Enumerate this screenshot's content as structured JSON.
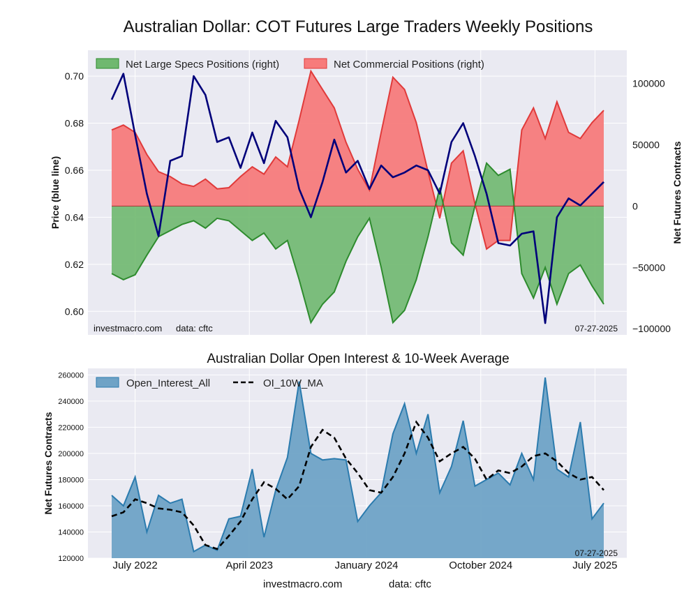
{
  "title": "Australian Dollar: COT Futures Large Traders Weekly Positions",
  "colors": {
    "plot_bg": "#eaeaf2",
    "grid": "#ffffff",
    "specs_fill": "#6fb86f",
    "specs_line": "#2e8b2e",
    "comm_fill": "#f77b7b",
    "comm_line": "#e03a3a",
    "price_line": "#00007a",
    "oi_fill": "#6fa3c6",
    "oi_line": "#2b7bae",
    "ma_line": "#000000"
  },
  "chart_data": [
    {
      "type": "area",
      "title": "",
      "ylabel": "Price (blue line)",
      "y2label": "Net Futures Contracts",
      "ylim": [
        0.59,
        0.711
      ],
      "y2lim": [
        -105000,
        127000
      ],
      "yticks": [
        "0.60",
        "0.62",
        "0.64",
        "0.66",
        "0.68",
        "0.70"
      ],
      "y2ticks": [
        "−100000",
        "−50000",
        "0",
        "50000",
        "100000"
      ],
      "legend_position": "top-left",
      "legend": [
        "Net Large Specs Positions (right)",
        "Net Commercial Positions (right)"
      ],
      "source_left": "investmacro.com",
      "source_right": "data: cftc",
      "date_label": "07-27-2025",
      "x_range": [
        "2022-05-08",
        "2025-07-27"
      ],
      "x": [
        "2022-05-08",
        "2022-06-05",
        "2022-07-03",
        "2022-07-31",
        "2022-08-28",
        "2022-09-25",
        "2022-10-23",
        "2022-11-20",
        "2022-12-18",
        "2023-01-15",
        "2023-02-12",
        "2023-03-12",
        "2023-04-09",
        "2023-05-07",
        "2023-06-04",
        "2023-07-02",
        "2023-07-30",
        "2023-08-27",
        "2023-09-24",
        "2023-10-22",
        "2023-11-19",
        "2023-12-17",
        "2024-01-14",
        "2024-02-11",
        "2024-03-10",
        "2024-04-07",
        "2024-05-05",
        "2024-06-02",
        "2024-06-30",
        "2024-07-28",
        "2024-08-25",
        "2024-09-22",
        "2024-10-20",
        "2024-11-17",
        "2024-12-15",
        "2025-01-12",
        "2025-02-09",
        "2025-03-09",
        "2025-04-06",
        "2025-05-04",
        "2025-06-01",
        "2025-06-29",
        "2025-07-27"
      ],
      "series": [
        {
          "name": "Net Large Specs Positions (right)",
          "values": [
            -55000,
            -60000,
            -56000,
            -40000,
            -25000,
            -20000,
            -15000,
            -12000,
            -18000,
            -10000,
            -12000,
            -20000,
            -28000,
            -22000,
            -35000,
            -28000,
            -60000,
            -95000,
            -80000,
            -70000,
            -45000,
            -25000,
            -10000,
            -50000,
            -95000,
            -85000,
            -60000,
            -25000,
            15000,
            -30000,
            -40000,
            0,
            35000,
            25000,
            30000,
            -55000,
            -75000,
            -50000,
            -80000,
            -55000,
            -48000,
            -65000,
            -80000
          ]
        },
        {
          "name": "Net Commercial Positions (right)",
          "values": [
            62000,
            66000,
            60000,
            42000,
            28000,
            24000,
            18000,
            16000,
            22000,
            14000,
            15000,
            24000,
            32000,
            26000,
            40000,
            32000,
            70000,
            110000,
            95000,
            80000,
            52000,
            30000,
            13000,
            60000,
            105000,
            95000,
            68000,
            28000,
            -10000,
            35000,
            45000,
            2000,
            -35000,
            -28000,
            -28000,
            62000,
            80000,
            55000,
            85000,
            60000,
            55000,
            68000,
            78000
          ]
        },
        {
          "name": "Price (blue line)",
          "values": [
            0.69,
            0.701,
            0.675,
            0.65,
            0.632,
            0.664,
            0.666,
            0.7,
            0.692,
            0.672,
            0.674,
            0.661,
            0.676,
            0.663,
            0.681,
            0.674,
            0.652,
            0.64,
            0.655,
            0.673,
            0.659,
            0.664,
            0.652,
            0.662,
            0.657,
            0.659,
            0.662,
            0.66,
            0.65,
            0.672,
            0.68,
            0.666,
            0.65,
            0.629,
            0.628,
            0.633,
            0.634,
            0.595,
            0.64,
            0.648,
            0.645,
            0.65,
            0.655
          ]
        }
      ]
    },
    {
      "type": "area",
      "title": "Australian Dollar Open Interest & 10-Week Average",
      "ylabel": "Net Futures Contracts",
      "ylim": [
        120000,
        265000
      ],
      "yticks": [
        "120000",
        "140000",
        "160000",
        "180000",
        "200000",
        "220000",
        "240000",
        "260000"
      ],
      "legend_position": "top-left",
      "legend": [
        "Open_Interest_All",
        "OI_10W_MA"
      ],
      "date_label": "07-27-2025",
      "x_range": [
        "2022-05-08",
        "2025-07-27"
      ],
      "xticks": [
        "July 2022",
        "April 2023",
        "January 2024",
        "October 2024",
        "July 2025"
      ],
      "xtick_dates": [
        "2022-07-03",
        "2023-04-02",
        "2024-01-07",
        "2024-10-06",
        "2025-07-06"
      ],
      "x": [
        "2022-05-08",
        "2022-06-05",
        "2022-07-03",
        "2022-07-31",
        "2022-08-28",
        "2022-09-25",
        "2022-10-23",
        "2022-11-20",
        "2022-12-18",
        "2023-01-15",
        "2023-02-12",
        "2023-03-12",
        "2023-04-09",
        "2023-05-07",
        "2023-06-04",
        "2023-07-02",
        "2023-07-30",
        "2023-08-27",
        "2023-09-24",
        "2023-10-22",
        "2023-11-19",
        "2023-12-17",
        "2024-01-14",
        "2024-02-11",
        "2024-03-10",
        "2024-04-07",
        "2024-05-05",
        "2024-06-02",
        "2024-06-30",
        "2024-07-28",
        "2024-08-25",
        "2024-09-22",
        "2024-10-20",
        "2024-11-17",
        "2024-12-15",
        "2025-01-12",
        "2025-02-09",
        "2025-03-09",
        "2025-04-06",
        "2025-05-04",
        "2025-06-01",
        "2025-06-29",
        "2025-07-27"
      ],
      "series": [
        {
          "name": "Open_Interest_All",
          "values": [
            168000,
            160000,
            182000,
            140000,
            168000,
            162000,
            165000,
            125000,
            130000,
            126000,
            150000,
            152000,
            188000,
            136000,
            172000,
            197000,
            255000,
            200000,
            195000,
            196000,
            195000,
            148000,
            160000,
            170000,
            215000,
            238000,
            200000,
            230000,
            170000,
            190000,
            225000,
            175000,
            180000,
            185000,
            176000,
            200000,
            180000,
            258000,
            188000,
            182000,
            224000,
            150000,
            162000
          ]
        },
        {
          "name": "OI_10W_MA",
          "values": [
            152000,
            155000,
            165000,
            162000,
            158000,
            157000,
            155000,
            145000,
            130000,
            127000,
            137000,
            148000,
            165000,
            178000,
            173000,
            165000,
            175000,
            205000,
            218000,
            212000,
            196000,
            185000,
            172000,
            170000,
            182000,
            200000,
            224000,
            212000,
            194000,
            200000,
            205000,
            196000,
            180000,
            187000,
            185000,
            190000,
            198000,
            200000,
            194000,
            185000,
            180000,
            182000,
            172000
          ]
        }
      ]
    }
  ],
  "footer": {
    "left": "investmacro.com",
    "right": "data: cftc"
  }
}
